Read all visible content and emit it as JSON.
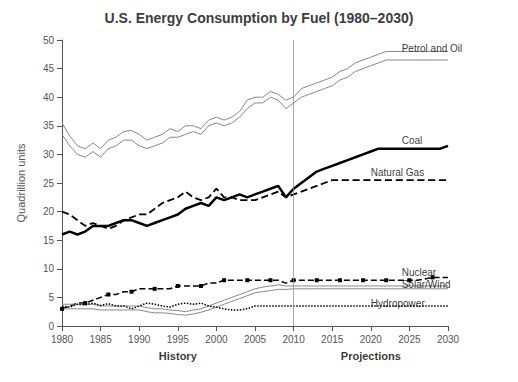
{
  "chart_data": {
    "type": "line",
    "title": "U.S. Energy Consumption by Fuel (1980–2030)",
    "ylabel": "Quadrillion units",
    "x": [
      1980,
      1981,
      1982,
      1983,
      1984,
      1985,
      1986,
      1987,
      1988,
      1989,
      1990,
      1991,
      1992,
      1993,
      1994,
      1995,
      1996,
      1997,
      1998,
      1999,
      2000,
      2001,
      2002,
      2003,
      2004,
      2005,
      2006,
      2007,
      2008,
      2009,
      2010,
      2011,
      2012,
      2013,
      2014,
      2015,
      2016,
      2017,
      2018,
      2019,
      2020,
      2021,
      2022,
      2023,
      2024,
      2025,
      2026,
      2027,
      2028,
      2029,
      2030
    ],
    "xlim": [
      1980,
      2030
    ],
    "xticks": [
      1980,
      1985,
      1990,
      1995,
      2000,
      2005,
      2010,
      2015,
      2020,
      2025,
      2030
    ],
    "ylim": [
      0,
      50
    ],
    "yticks": [
      0,
      5,
      10,
      15,
      20,
      25,
      30,
      35,
      40,
      45,
      50
    ],
    "grid": false,
    "series": [
      {
        "name": "Petrol and Oil",
        "color": "#888888",
        "line_style": "solid",
        "upper": [
          35.5,
          33.2,
          31.5,
          31.0,
          32.0,
          31.0,
          32.5,
          33.0,
          34.0,
          34.2,
          33.5,
          32.5,
          33.0,
          33.5,
          34.5,
          34.0,
          35.0,
          35.0,
          34.5,
          36.0,
          36.5,
          36.0,
          36.5,
          37.5,
          39.5,
          40.0,
          40.0,
          41.0,
          40.5,
          39.5,
          40.0,
          41.5,
          42.0,
          42.5,
          43.0,
          43.5,
          44.5,
          45.0,
          46.0,
          46.5,
          47.0,
          47.5,
          48.0,
          48.0,
          48.0,
          48.0,
          48.0,
          48.0,
          48.0,
          48.0,
          48.0
        ],
        "lower": [
          33.5,
          31.5,
          30.0,
          29.5,
          30.5,
          29.5,
          31.0,
          31.5,
          32.5,
          32.5,
          31.5,
          31.0,
          31.5,
          32.0,
          33.0,
          33.0,
          33.5,
          34.0,
          33.5,
          35.0,
          35.5,
          35.0,
          35.5,
          36.5,
          38.0,
          39.0,
          39.0,
          40.0,
          39.5,
          38.0,
          39.0,
          40.0,
          40.5,
          41.0,
          41.5,
          42.0,
          43.0,
          43.5,
          44.5,
          45.0,
          45.5,
          46.0,
          46.5,
          46.5,
          46.5,
          46.5,
          46.5,
          46.5,
          46.5,
          46.5,
          46.5
        ]
      },
      {
        "name": "Coal",
        "color": "#000000",
        "line_style": "solid",
        "values": [
          16.0,
          16.5,
          16.0,
          16.5,
          17.5,
          17.5,
          17.5,
          18.0,
          18.5,
          18.5,
          18.0,
          17.5,
          18.0,
          18.5,
          19.0,
          19.5,
          20.5,
          21.0,
          21.5,
          21.0,
          22.5,
          22.0,
          22.5,
          23.0,
          22.5,
          23.0,
          23.5,
          24.0,
          24.5,
          22.5,
          24.0,
          25.0,
          26.0,
          27.0,
          27.5,
          28.0,
          28.5,
          29.0,
          29.5,
          30.0,
          30.5,
          31.0,
          31.0,
          31.0,
          31.0,
          31.0,
          31.0,
          31.0,
          31.0,
          31.0,
          31.5
        ]
      },
      {
        "name": "Natural Gas",
        "color": "#000000",
        "line_style": "dashed",
        "values": [
          20.0,
          19.5,
          18.5,
          17.5,
          18.0,
          17.5,
          17.0,
          17.5,
          18.5,
          19.0,
          19.5,
          19.5,
          20.5,
          21.5,
          22.0,
          22.5,
          23.5,
          22.5,
          22.0,
          22.5,
          24.0,
          22.5,
          22.5,
          22.0,
          22.0,
          22.0,
          22.5,
          23.0,
          23.5,
          22.5,
          23.0,
          23.5,
          24.0,
          24.5,
          25.0,
          25.5,
          25.5,
          25.5,
          25.5,
          25.5,
          25.5,
          25.5,
          25.5,
          25.5,
          25.5,
          25.5,
          25.5,
          25.5,
          25.5,
          25.5,
          25.5
        ]
      },
      {
        "name": "Nuclear",
        "color": "#000000",
        "line_style": "dashed",
        "marker": "square",
        "values": [
          3.0,
          3.5,
          4.0,
          4.0,
          4.5,
          5.0,
          5.5,
          5.5,
          6.0,
          6.0,
          6.5,
          6.5,
          6.5,
          6.5,
          6.5,
          7.0,
          7.0,
          7.0,
          7.0,
          7.5,
          7.5,
          8.0,
          8.0,
          8.0,
          8.0,
          8.0,
          8.0,
          8.0,
          8.0,
          7.5,
          8.0,
          8.0,
          8.0,
          8.0,
          8.0,
          8.0,
          8.0,
          8.0,
          8.0,
          8.0,
          8.0,
          8.0,
          8.0,
          8.0,
          8.0,
          8.0,
          8.0,
          8.2,
          8.5,
          8.5,
          8.5
        ]
      },
      {
        "name": "Solar/Wind",
        "color": "#888888",
        "line_style": "solid",
        "upper": [
          3.8,
          3.8,
          3.8,
          3.8,
          3.8,
          3.5,
          3.5,
          3.5,
          3.5,
          3.5,
          3.5,
          3.2,
          3.0,
          3.0,
          2.8,
          2.7,
          2.5,
          2.8,
          3.0,
          3.5,
          4.0,
          4.5,
          5.0,
          5.5,
          6.0,
          6.5,
          6.8,
          7.0,
          7.2,
          7.0,
          7.0,
          7.0,
          7.0,
          7.0,
          7.0,
          7.0,
          7.0,
          7.0,
          7.0,
          7.0,
          7.0,
          7.0,
          7.0,
          7.0,
          7.0,
          7.0,
          7.0,
          7.0,
          7.0,
          7.0,
          7.0
        ],
        "lower": [
          3.0,
          3.0,
          3.0,
          3.0,
          3.0,
          2.8,
          2.8,
          2.8,
          2.8,
          2.8,
          2.8,
          2.5,
          2.3,
          2.3,
          2.2,
          2.0,
          1.9,
          2.1,
          2.4,
          2.8,
          3.3,
          3.8,
          4.3,
          4.8,
          5.3,
          5.8,
          6.0,
          6.2,
          6.4,
          6.4,
          6.5,
          6.5,
          6.5,
          6.5,
          6.5,
          6.5,
          6.5,
          6.5,
          6.5,
          6.5,
          6.5,
          6.5,
          6.5,
          6.5,
          6.5,
          6.5,
          6.5,
          6.5,
          6.5,
          6.5,
          6.5
        ]
      },
      {
        "name": "Hydropower",
        "color": "#000000",
        "line_style": "dotted",
        "values": [
          3.5,
          3.3,
          3.8,
          3.7,
          4.0,
          3.6,
          3.9,
          3.5,
          3.5,
          3.0,
          3.5,
          4.0,
          3.8,
          3.5,
          3.3,
          3.8,
          4.0,
          3.8,
          4.0,
          3.5,
          3.3,
          3.0,
          2.8,
          2.8,
          3.0,
          3.5,
          3.5,
          3.5,
          3.5,
          3.5,
          3.5,
          3.5,
          3.5,
          3.5,
          3.5,
          3.5,
          3.5,
          3.5,
          3.5,
          3.5,
          3.5,
          3.5,
          3.5,
          3.5,
          3.5,
          3.5,
          3.5,
          3.5,
          3.5,
          3.5,
          3.5
        ]
      }
    ],
    "annotations": [
      {
        "text": "Petrol and Oil",
        "x": 2024,
        "y": 48.5
      },
      {
        "text": "Coal",
        "x": 2024,
        "y": 32.5
      },
      {
        "text": "Natural Gas",
        "x": 2020,
        "y": 26.8
      },
      {
        "text": "Nuclear",
        "x": 2024,
        "y": 9.3
      },
      {
        "text": "Solar/Wind",
        "x": 2024,
        "y": 7.3
      },
      {
        "text": "Hydropower",
        "x": 2020,
        "y": 4.0
      }
    ],
    "period_labels": [
      {
        "text": "History",
        "x": 1995
      },
      {
        "text": "Projections",
        "x": 2020
      }
    ],
    "divider": {
      "x": 2010,
      "color": "#888888"
    }
  }
}
